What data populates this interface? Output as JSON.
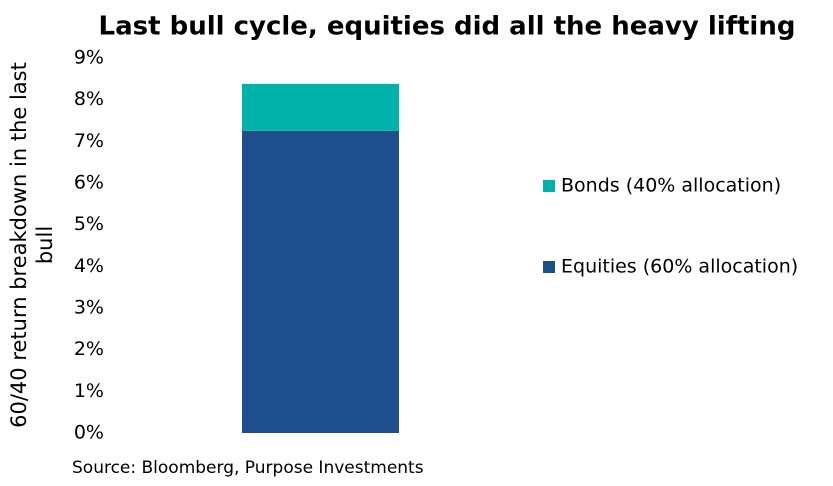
{
  "chart_data": {
    "type": "stacked_bar",
    "title": "Last bull cycle, equities did all the heavy lifting",
    "y_label": "60/40 return breakdown in the last bull",
    "source": "Source: Bloomberg, Purpose Investments",
    "categories": [
      null
    ],
    "series": [
      {
        "name": "Equities (60% allocation)",
        "color": "#1f4e8c",
        "values": [
          7.25
        ]
      },
      {
        "name": "Bonds (40% allocation)",
        "color": "#00b2a9",
        "values": [
          1.13
        ]
      }
    ],
    "ylim": [
      0,
      9
    ],
    "yticks": [
      {
        "value": 0,
        "label": "0%"
      },
      {
        "value": 1,
        "label": "1%"
      },
      {
        "value": 2,
        "label": "2%"
      },
      {
        "value": 3,
        "label": "3%"
      },
      {
        "value": 4,
        "label": "4%"
      },
      {
        "value": 5,
        "label": "5%"
      },
      {
        "value": 6,
        "label": "6%"
      },
      {
        "value": 7,
        "label": "7%"
      },
      {
        "value": 8,
        "label": "8%"
      },
      {
        "value": 9,
        "label": "9%"
      }
    ],
    "grid": false,
    "legend": "right"
  }
}
